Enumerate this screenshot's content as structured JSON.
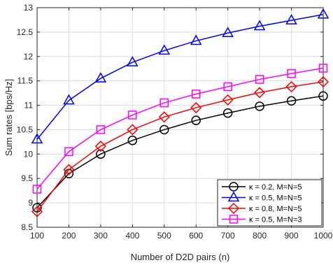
{
  "chart_data": {
    "type": "line",
    "xlabel": "Number of D2D pairs (n)",
    "ylabel": "Sum rates [bps/Hz]",
    "x": [
      100,
      200,
      300,
      400,
      500,
      600,
      700,
      800,
      900,
      1000
    ],
    "xlim": [
      100,
      1000
    ],
    "ylim": [
      8.5,
      13
    ],
    "xticks": [
      100,
      200,
      300,
      400,
      500,
      600,
      700,
      800,
      900,
      1000
    ],
    "yticks": [
      8.5,
      9,
      9.5,
      10,
      10.5,
      11,
      11.5,
      12,
      12.5,
      13
    ],
    "grid": true,
    "legend_position": "bottom-right",
    "series": [
      {
        "name": "κ = 0.2, M=N=5",
        "color": "#000000",
        "marker": "circle",
        "values": [
          8.9,
          9.6,
          10.0,
          10.28,
          10.5,
          10.69,
          10.84,
          10.98,
          11.09,
          11.19
        ]
      },
      {
        "name": "κ = 0.5, M=N=5",
        "color": "#0000ff",
        "marker": "triangle",
        "values": [
          10.3,
          11.1,
          11.55,
          11.88,
          12.12,
          12.32,
          12.48,
          12.62,
          12.74,
          12.86
        ]
      },
      {
        "name": "κ = 0.8, M=N=5",
        "color": "#ff0000",
        "marker": "diamond",
        "values": [
          8.82,
          9.68,
          10.16,
          10.5,
          10.76,
          10.95,
          11.11,
          11.26,
          11.38,
          11.48
        ]
      },
      {
        "name": "κ = 0.5, M=N=3",
        "color": "#ff00ff",
        "marker": "square",
        "values": [
          9.28,
          10.05,
          10.5,
          10.8,
          11.05,
          11.23,
          11.38,
          11.53,
          11.65,
          11.76
        ]
      }
    ]
  }
}
